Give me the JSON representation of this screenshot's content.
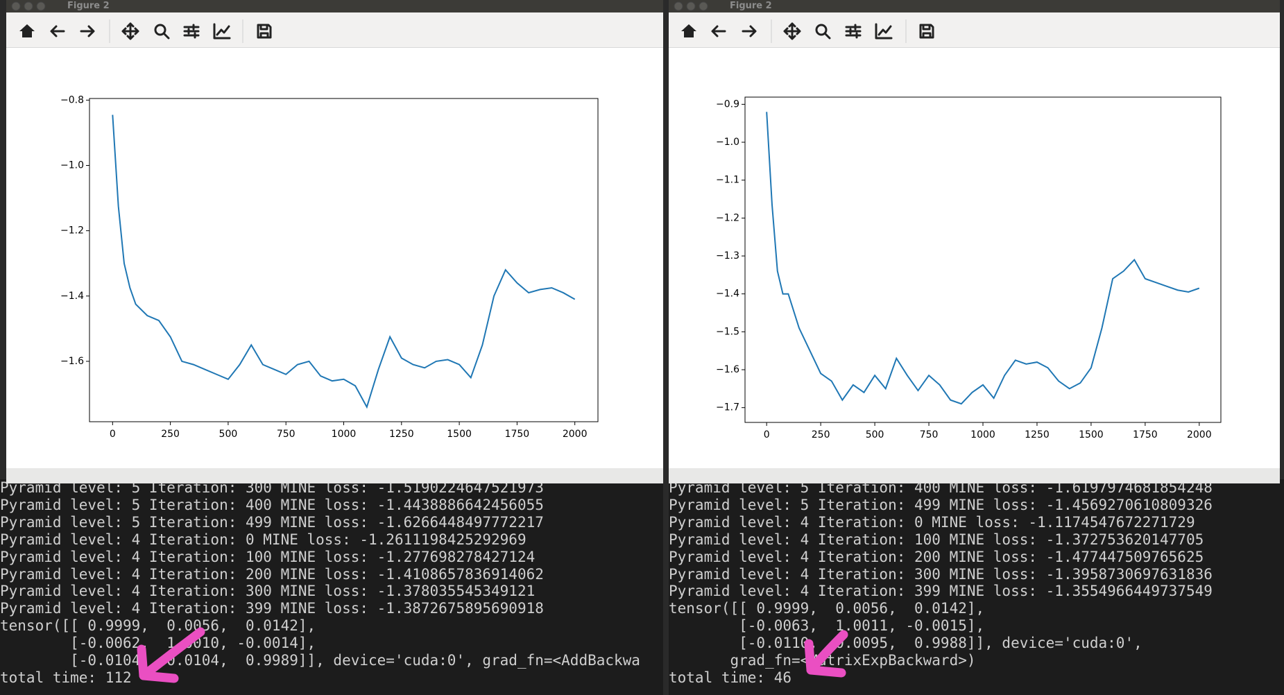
{
  "windows": [
    {
      "title": "Figure 2"
    },
    {
      "title": "Figure 2"
    }
  ],
  "chart_data": [
    {
      "type": "line",
      "x": [
        0,
        25,
        50,
        75,
        100,
        150,
        200,
        250,
        300,
        350,
        400,
        450,
        500,
        550,
        600,
        650,
        700,
        750,
        800,
        850,
        900,
        950,
        1000,
        1050,
        1100,
        1150,
        1200,
        1250,
        1300,
        1350,
        1400,
        1450,
        1500,
        1550,
        1600,
        1650,
        1700,
        1750,
        1800,
        1850,
        1900,
        1950,
        2000
      ],
      "series": [
        {
          "color": "#1f77b4",
          "values": [
            -0.845,
            -1.125,
            -1.3,
            -1.375,
            -1.425,
            -1.46,
            -1.475,
            -1.525,
            -1.6,
            -1.61,
            -1.625,
            -1.64,
            -1.655,
            -1.61,
            -1.55,
            -1.61,
            -1.625,
            -1.64,
            -1.61,
            -1.6,
            -1.645,
            -1.66,
            -1.655,
            -1.675,
            -1.74,
            -1.625,
            -1.525,
            -1.59,
            -1.61,
            -1.62,
            -1.6,
            -1.595,
            -1.61,
            -1.65,
            -1.55,
            -1.4,
            -1.32,
            -1.36,
            -1.39,
            -1.38,
            -1.375,
            -1.39,
            -1.41
          ]
        }
      ],
      "xlim": [
        -100,
        2100
      ],
      "ylim": [
        -1.785,
        -0.795
      ],
      "xticks": [
        0,
        250,
        500,
        750,
        1000,
        1250,
        1500,
        1750,
        2000
      ],
      "yticks": [
        {
          "value": -1.6,
          "label": "−1.6"
        },
        {
          "value": -1.4,
          "label": "−1.4"
        },
        {
          "value": -1.2,
          "label": "−1.2"
        },
        {
          "value": -1.0,
          "label": "−1.0"
        },
        {
          "value": -0.8,
          "label": "−0.8"
        }
      ]
    },
    {
      "type": "line",
      "x": [
        0,
        25,
        50,
        75,
        100,
        150,
        200,
        250,
        300,
        350,
        400,
        450,
        500,
        550,
        600,
        650,
        700,
        750,
        800,
        850,
        900,
        950,
        1000,
        1050,
        1100,
        1150,
        1200,
        1250,
        1300,
        1350,
        1400,
        1450,
        1500,
        1550,
        1600,
        1650,
        1700,
        1750,
        1800,
        1850,
        1900,
        1950,
        2000
      ],
      "series": [
        {
          "color": "#1f77b4",
          "values": [
            -0.92,
            -1.165,
            -1.34,
            -1.4,
            -1.4,
            -1.49,
            -1.55,
            -1.61,
            -1.63,
            -1.68,
            -1.64,
            -1.66,
            -1.615,
            -1.65,
            -1.57,
            -1.615,
            -1.655,
            -1.615,
            -1.64,
            -1.68,
            -1.69,
            -1.66,
            -1.64,
            -1.675,
            -1.615,
            -1.575,
            -1.585,
            -1.58,
            -1.595,
            -1.63,
            -1.65,
            -1.635,
            -1.595,
            -1.49,
            -1.36,
            -1.34,
            -1.31,
            -1.36,
            -1.37,
            -1.38,
            -1.39,
            -1.395,
            -1.385
          ]
        }
      ],
      "xlim": [
        -100,
        2100
      ],
      "ylim": [
        -1.739,
        -0.881
      ],
      "xticks": [
        0,
        250,
        500,
        750,
        1000,
        1250,
        1500,
        1750,
        2000
      ],
      "yticks": [
        {
          "value": -1.7,
          "label": "−1.7"
        },
        {
          "value": -1.6,
          "label": "−1.6"
        },
        {
          "value": -1.5,
          "label": "−1.5"
        },
        {
          "value": -1.4,
          "label": "−1.4"
        },
        {
          "value": -1.3,
          "label": "−1.3"
        },
        {
          "value": -1.2,
          "label": "−1.2"
        },
        {
          "value": -1.1,
          "label": "−1.1"
        },
        {
          "value": -1.0,
          "label": "−1.0"
        },
        {
          "value": -0.9,
          "label": "−0.9"
        }
      ]
    }
  ],
  "terminals": [
    {
      "lines": [
        "Pyramid level: 5 Iteration: 300 MINE loss: -1.5190224647521973",
        "Pyramid level: 5 Iteration: 400 MINE loss: -1.4438886642456055",
        "Pyramid level: 5 Iteration: 499 MINE loss: -1.6266448497772217",
        "Pyramid level: 4 Iteration: 0 MINE loss: -1.2611198425292969",
        "Pyramid level: 4 Iteration: 100 MINE loss: -1.277698278427124",
        "Pyramid level: 4 Iteration: 200 MINE loss: -1.4108657836914062",
        "Pyramid level: 4 Iteration: 300 MINE loss: -1.378035545349121",
        "Pyramid level: 4 Iteration: 399 MINE loss: -1.3872675895690918",
        "tensor([[ 0.9999,  0.0056,  0.0142],",
        "        [-0.0062,  1.0010, -0.0014],",
        "        [-0.0104,  0.0104,  0.9989]], device='cuda:0', grad_fn=<AddBackwa",
        "total time: 112"
      ]
    },
    {
      "lines": [
        "Pyramid level: 5 Iteration: 400 MINE loss: -1.6197974681854248",
        "Pyramid level: 5 Iteration: 499 MINE loss: -1.4569270610809326",
        "Pyramid level: 4 Iteration: 0 MINE loss: -1.1174547672271729",
        "Pyramid level: 4 Iteration: 100 MINE loss: -1.372753620147705",
        "Pyramid level: 4 Iteration: 200 MINE loss: -1.477447509765625",
        "Pyramid level: 4 Iteration: 300 MINE loss: -1.3958730697631836",
        "Pyramid level: 4 Iteration: 399 MINE loss: -1.3554966449737549",
        "tensor([[ 0.9999,  0.0056,  0.0142],",
        "        [-0.0063,  1.0011, -0.0015],",
        "        [-0.0110,  0.0095,  0.9988]], device='cuda:0',",
        "       grad_fn=<MatrixExpBackward>)",
        "total time: 46"
      ]
    }
  ]
}
